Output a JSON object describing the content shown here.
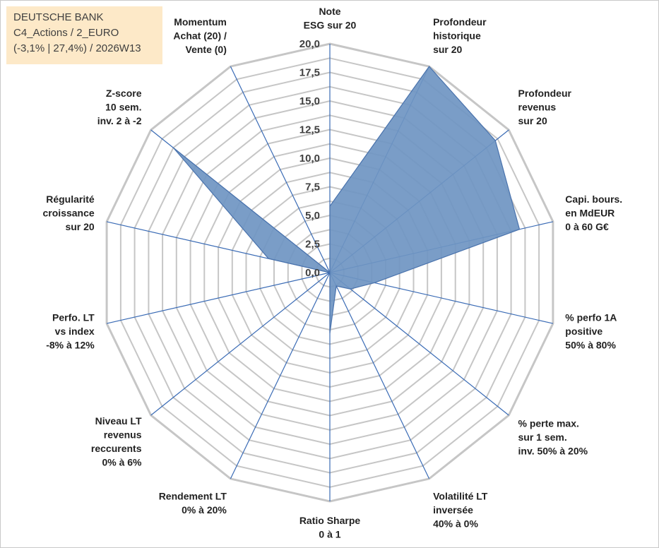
{
  "info_box": {
    "line1": "DEUTSCHE BANK",
    "line2": "C4_Actions / 2_EURO",
    "line3": "(-3,1% | 27,4%) / 2026W13"
  },
  "colors": {
    "grid": "#c6c6c6",
    "spoke": "#3a6bb5",
    "fill": "#6f95c2",
    "stroke": "#4a73ad",
    "text": "#222222"
  },
  "chart_data": {
    "type": "radar",
    "rmax": 20,
    "grid_step": 1.25,
    "ticks": [
      "0,0",
      "2,5",
      "5,0",
      "7,5",
      "10,0",
      "12,5",
      "15,0",
      "17,5",
      "20,0"
    ],
    "axes": [
      [
        "Note",
        "ESG sur 20"
      ],
      [
        "Profondeur",
        "historique",
        "sur 20"
      ],
      [
        "Profondeur",
        "revenus",
        "sur 20"
      ],
      [
        "Capi. bours.",
        "en MdEUR",
        "0 à 60 G€"
      ],
      [
        "% perfo 1A",
        "positive",
        "50% à 80%"
      ],
      [
        "% perte max.",
        "sur 1 sem.",
        "inv. 50% à 20%"
      ],
      [
        "Volatilité LT",
        "inversée",
        "40% à 0%"
      ],
      [
        "Ratio Sharpe",
        "0 à 1"
      ],
      [
        "Rendement LT",
        "0% à 20%"
      ],
      [
        "Niveau LT",
        "revenus",
        "reccurents",
        "0% à 6%"
      ],
      [
        "Perfo. LT",
        "vs index",
        "-8% à 12%"
      ],
      [
        "Régularité",
        "croissance",
        "sur 20"
      ],
      [
        "Z-score",
        "10 sem.",
        "inv. 2 à -2"
      ],
      [
        "Momentum",
        "Achat (20) /",
        "Vente (0)"
      ]
    ],
    "series": [
      {
        "values": [
          5.8,
          20,
          18.5,
          17,
          4,
          2.3,
          1.3,
          5.3,
          0,
          0,
          0,
          5.5,
          17.5,
          0
        ]
      }
    ]
  }
}
